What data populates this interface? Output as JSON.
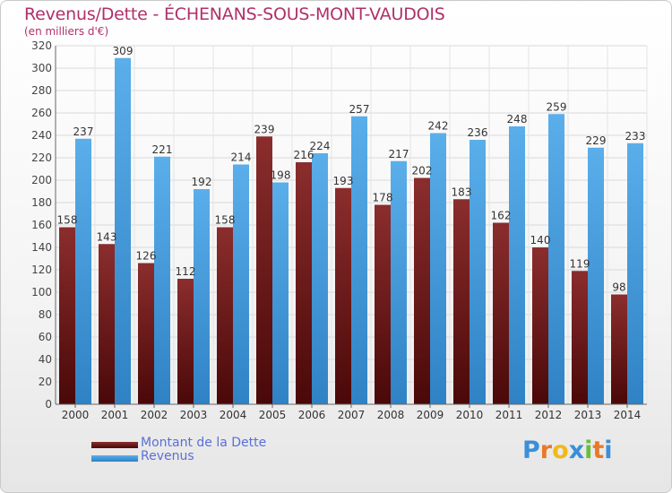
{
  "title": "Revenus/Dette - ÉCHENANS-SOUS-MONT-VAUDOIS",
  "unit_label": "(en milliers d'€)",
  "colors": {
    "debt_top": "#8b2d2d",
    "debt_bottom": "#4a0808",
    "revenue_top": "#5aaeea",
    "revenue_bottom": "#2f82c4",
    "title": "#b0306a",
    "legend_text": "#5b6fd6"
  },
  "legend": {
    "debt_label": "Montant de la Dette",
    "revenue_label": "Revenus"
  },
  "logo": {
    "letters": [
      "P",
      "r",
      "o",
      "x",
      "i",
      "t",
      "i"
    ],
    "colors": [
      "#3a8fd8",
      "#e8792a",
      "#f0b81c",
      "#3a8fd8",
      "#6cbd3a",
      "#e8792a",
      "#3a8fd8"
    ]
  },
  "chart_data": {
    "type": "bar",
    "title": "Revenus/Dette - ÉCHENANS-SOUS-MONT-VAUDOIS",
    "ylabel": "(en milliers d'€)",
    "xlabel": "",
    "ylim": [
      0,
      320
    ],
    "yticks": [
      0,
      20,
      40,
      60,
      80,
      100,
      120,
      140,
      160,
      180,
      200,
      220,
      240,
      260,
      280,
      300,
      320
    ],
    "grid": true,
    "categories": [
      "2000",
      "2001",
      "2002",
      "2003",
      "2004",
      "2005",
      "2006",
      "2007",
      "2008",
      "2009",
      "2010",
      "2011",
      "2012",
      "2013",
      "2014"
    ],
    "series": [
      {
        "name": "Montant de la Dette",
        "values": [
          158,
          143,
          126,
          112,
          158,
          239,
          216,
          193,
          178,
          202,
          183,
          162,
          140,
          119,
          98
        ]
      },
      {
        "name": "Revenus",
        "values": [
          237,
          309,
          221,
          192,
          214,
          198,
          224,
          257,
          217,
          242,
          236,
          248,
          259,
          229,
          233
        ]
      }
    ]
  }
}
